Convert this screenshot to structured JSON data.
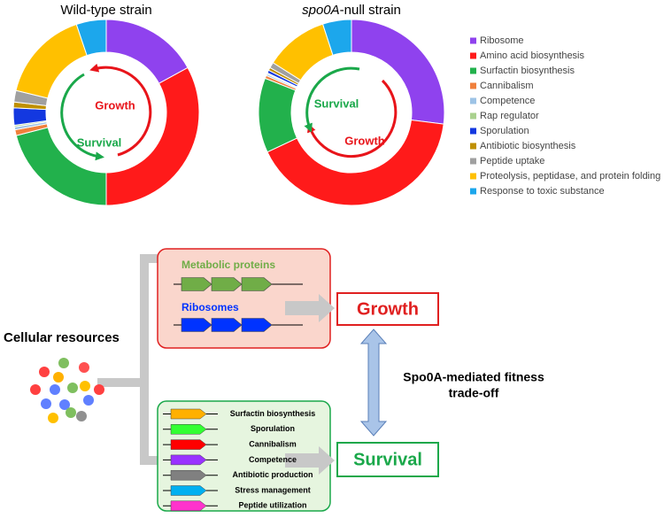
{
  "chart_data": [
    {
      "type": "pie",
      "title": "Wild-type strain",
      "categories": [
        "Ribosome",
        "Amino acid biosynthesis",
        "Surfactin biosynthesis",
        "Cannibalism",
        "Competence",
        "Rap regulator",
        "Sporulation",
        "Antibiotic biosynthesis",
        "Peptide uptake",
        "Proteolysis, peptidase, and protein folding",
        "Response to toxic substance"
      ],
      "colors": [
        "#8f42ee",
        "#ff1a1a",
        "#22b14c",
        "#f0803c",
        "#9dc3e6",
        "#a9d18e",
        "#1338e0",
        "#bf9000",
        "#a0a0a0",
        "#ffc000",
        "#1ca7ec"
      ],
      "values": [
        17,
        33,
        21,
        1,
        0.5,
        0.3,
        3,
        1,
        2,
        16,
        5.2
      ],
      "legend": "right",
      "annotations": [
        {
          "text": "Growth",
          "color": "#e8141a"
        },
        {
          "text": "Survival",
          "color": "#1aa84a"
        }
      ]
    },
    {
      "type": "pie",
      "title": {
        "italic": "spo0A",
        "text": "-null strain"
      },
      "values": [
        27,
        41,
        13,
        0.5,
        0.3,
        0.2,
        0.5,
        0.5,
        1,
        11,
        5
      ],
      "annotations": [
        {
          "text": "Survival",
          "color": "#1aa84a"
        },
        {
          "text": "Growth",
          "color": "#e8141a"
        }
      ]
    }
  ],
  "diagram": {
    "resources": "Cellular resources",
    "metabolic": {
      "label": "Metabolic proteins",
      "color": "#70ad47"
    },
    "ribosomes": {
      "label": "Ribosomes",
      "color": "#0033ff"
    },
    "growth": "Growth",
    "survival": "Survival",
    "tradeoff": [
      "Spo0A-mediated fitness",
      "trade-off"
    ],
    "survival_genes": [
      {
        "label": "Surfactin biosynthesis",
        "color": "#ffb000"
      },
      {
        "label": "Sporulation",
        "color": "#33ff33"
      },
      {
        "label": "Cannibalism",
        "color": "#ff0000"
      },
      {
        "label": "Competence",
        "color": "#9933ff"
      },
      {
        "label": "Antibiotic production",
        "color": "#808080"
      },
      {
        "label": "Stress management",
        "color": "#00b0f0"
      },
      {
        "label": "Peptide utilization",
        "color": "#ff33cc"
      }
    ]
  }
}
